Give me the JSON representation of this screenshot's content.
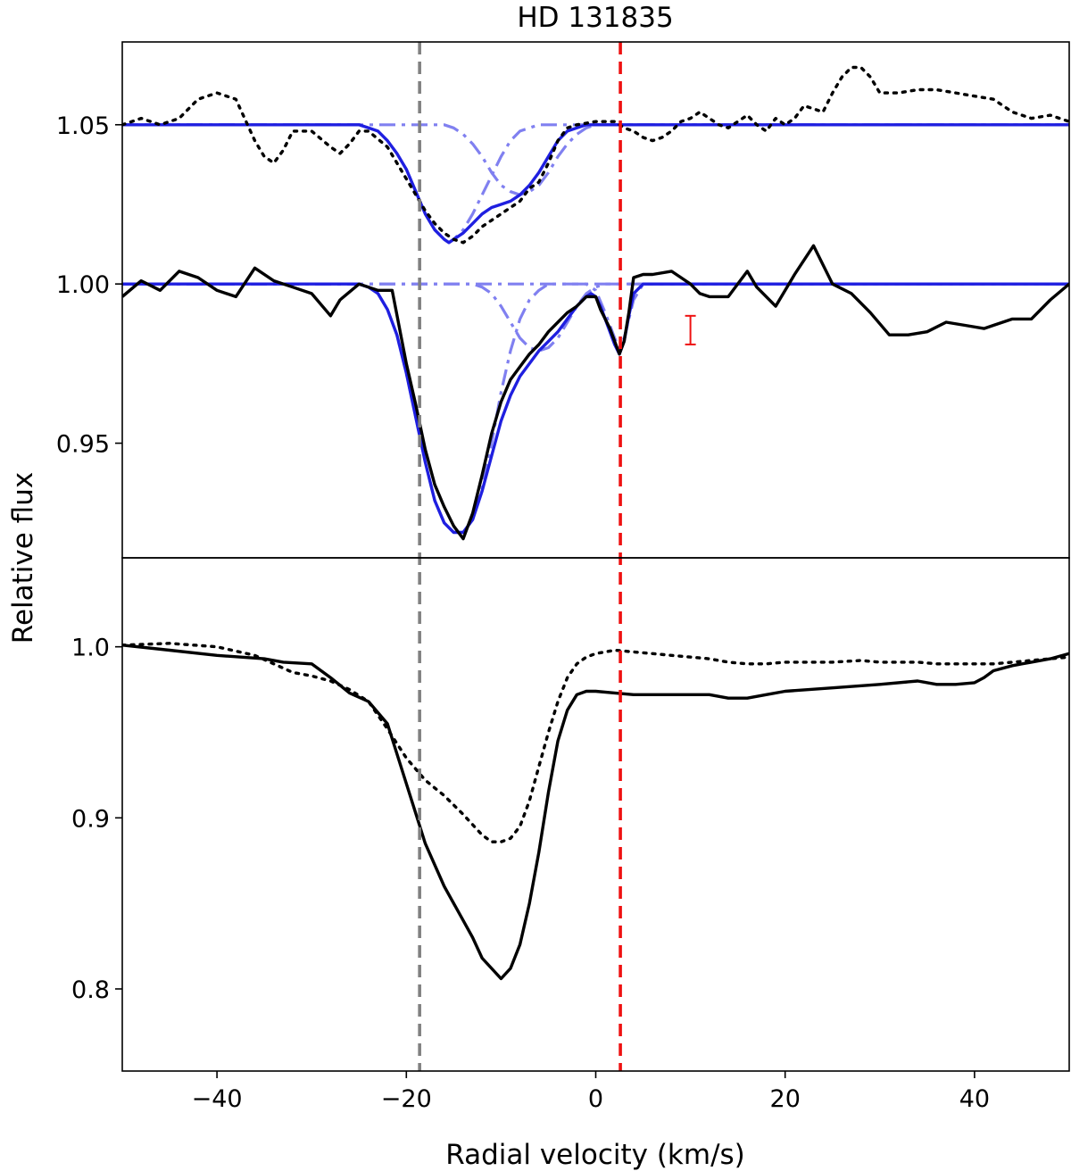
{
  "chart_data": {
    "type": "line",
    "title": "HD 131835",
    "xlabel": "Radial velocity (km/s)",
    "ylabel": "Relative flux",
    "xlim": [
      -50,
      50
    ],
    "x_ticks": [
      -40,
      -20,
      0,
      20,
      40
    ],
    "x_tick_labels": [
      "−40",
      "−20",
      "0",
      "20",
      "40"
    ],
    "grid": false,
    "legend": "none",
    "colors": {
      "observed": "#000000",
      "fit": "#1f1fe0",
      "component": "#8080f0",
      "gray_marker": "#808080",
      "red_marker": "#ee1111"
    },
    "vertical_lines": [
      {
        "x": -18.6,
        "color": "#808080",
        "style": "dashed"
      },
      {
        "x": 2.6,
        "color": "#ee1111",
        "style": "dashed"
      }
    ],
    "panels": [
      {
        "ylim": [
          0.914,
          1.076
        ],
        "y_ticks": [
          0.95,
          1.0,
          1.05
        ],
        "y_tick_labels": [
          "0.95",
          "1.00",
          "1.05"
        ],
        "error_bar": {
          "x": 10,
          "y_low": 0.981,
          "y_high": 0.99,
          "color": "#ee1111"
        },
        "series": [
          {
            "style": "solid",
            "color": "#000000",
            "x": [
              -50,
              -48,
              -46,
              -44,
              -42,
              -40,
              -38,
              -36,
              -34,
              -32,
              -30,
              -28,
              -27,
              -25,
              -23,
              -21.5,
              -20,
              -19,
              -18,
              -17,
              -16,
              -15,
              -14,
              -13,
              -12,
              -11,
              -10,
              -9,
              -8,
              -7,
              -6,
              -5,
              -4,
              -3,
              -2,
              -1,
              0,
              0.5,
              1,
              1.5,
              2,
              2.5,
              3,
              3.5,
              4,
              5,
              6,
              8,
              9,
              10,
              11,
              12,
              14,
              16,
              17,
              19,
              21,
              23,
              25,
              27,
              29,
              31,
              33,
              35,
              37,
              39,
              41,
              42,
              44,
              46,
              48,
              50
            ],
            "y": [
              0.996,
              1.001,
              0.998,
              1.004,
              1.002,
              0.998,
              0.996,
              1.005,
              1.001,
              0.999,
              0.997,
              0.99,
              0.995,
              1.0,
              0.998,
              0.998,
              0.975,
              0.962,
              0.948,
              0.937,
              0.93,
              0.924,
              0.92,
              0.928,
              0.94,
              0.953,
              0.963,
              0.97,
              0.974,
              0.978,
              0.981,
              0.985,
              0.988,
              0.991,
              0.993,
              0.996,
              0.996,
              0.992,
              0.989,
              0.986,
              0.982,
              0.978,
              0.982,
              0.991,
              1.002,
              1.003,
              1.003,
              1.004,
              1.002,
              1.0,
              0.997,
              0.996,
              0.996,
              1.004,
              0.999,
              0.993,
              1.003,
              1.012,
              1.0,
              0.997,
              0.991,
              0.984,
              0.984,
              0.985,
              0.988,
              0.987,
              0.986,
              0.987,
              0.989,
              0.989,
              0.995,
              1.0
            ]
          },
          {
            "style": "dotted",
            "color": "#000000",
            "x": [
              -50,
              -48,
              -46,
              -44,
              -42,
              -40,
              -38,
              -36,
              -35,
              -34,
              -33,
              -32,
              -30,
              -28,
              -27,
              -26,
              -25,
              -24,
              -22,
              -20,
              -19,
              -18,
              -17,
              -16,
              -15,
              -14,
              -13,
              -12,
              -11,
              -10,
              -9,
              -8,
              -7,
              -6,
              -5,
              -4,
              -3,
              -2,
              0,
              2,
              3,
              4,
              5,
              6,
              7,
              8,
              9,
              10,
              11,
              12,
              13,
              14,
              15,
              16,
              17,
              18,
              19,
              20,
              21,
              22,
              24,
              25,
              26,
              27,
              28,
              29,
              30,
              32,
              34,
              36,
              38,
              40,
              42,
              44,
              46,
              48,
              50
            ],
            "y": [
              1.05,
              1.052,
              1.05,
              1.052,
              1.058,
              1.06,
              1.058,
              1.045,
              1.04,
              1.038,
              1.042,
              1.048,
              1.048,
              1.043,
              1.041,
              1.044,
              1.048,
              1.048,
              1.043,
              1.033,
              1.028,
              1.023,
              1.019,
              1.016,
              1.014,
              1.013,
              1.015,
              1.018,
              1.02,
              1.022,
              1.024,
              1.026,
              1.03,
              1.032,
              1.038,
              1.045,
              1.049,
              1.05,
              1.051,
              1.051,
              1.049,
              1.048,
              1.046,
              1.045,
              1.046,
              1.048,
              1.051,
              1.052,
              1.054,
              1.052,
              1.05,
              1.049,
              1.051,
              1.053,
              1.05,
              1.048,
              1.052,
              1.05,
              1.052,
              1.056,
              1.054,
              1.06,
              1.065,
              1.068,
              1.068,
              1.065,
              1.06,
              1.06,
              1.061,
              1.061,
              1.06,
              1.059,
              1.058,
              1.054,
              1.052,
              1.053,
              1.051
            ]
          },
          {
            "style": "solid",
            "color": "#1f1fe0",
            "x": [
              -50,
              -25,
              -24,
              -23,
              -22,
              -21,
              -20,
              -19,
              -18,
              -17,
              -16,
              -15.5,
              -15,
              -14,
              -13,
              -12,
              -11,
              -10,
              -9,
              -8,
              -7,
              -6,
              -5,
              -4,
              -3,
              -2,
              -1,
              0,
              2,
              50
            ],
            "y": [
              1.05,
              1.05,
              1.049,
              1.048,
              1.045,
              1.041,
              1.036,
              1.029,
              1.022,
              1.017,
              1.014,
              1.013,
              1.014,
              1.016,
              1.019,
              1.022,
              1.024,
              1.025,
              1.026,
              1.028,
              1.031,
              1.035,
              1.04,
              1.045,
              1.048,
              1.049,
              1.05,
              1.05,
              1.05,
              1.05
            ]
          },
          {
            "style": "dashdot",
            "color": "#8080f0",
            "x": [
              -50,
              -25,
              -24,
              -23,
              -22,
              -21,
              -20,
              -19,
              -18,
              -17,
              -16,
              -15.5,
              -15,
              -14,
              -13,
              -12,
              -11,
              -10,
              -9,
              -8,
              -7,
              -6,
              -5,
              -4,
              -3,
              -2,
              0,
              2,
              50
            ],
            "y": [
              1.05,
              1.05,
              1.049,
              1.048,
              1.045,
              1.041,
              1.036,
              1.029,
              1.022,
              1.017,
              1.014,
              1.013,
              1.014,
              1.017,
              1.022,
              1.028,
              1.034,
              1.04,
              1.045,
              1.048,
              1.049,
              1.05,
              1.05,
              1.05,
              1.05,
              1.05,
              1.05,
              1.05,
              1.05
            ]
          },
          {
            "style": "dashdot",
            "color": "#8080f0",
            "x": [
              -50,
              -16,
              -15,
              -14,
              -13,
              -12,
              -11,
              -10,
              -9,
              -8,
              -7,
              -6,
              -5,
              -4,
              -3,
              -2,
              -1,
              0,
              50
            ],
            "y": [
              1.05,
              1.05,
              1.049,
              1.047,
              1.044,
              1.04,
              1.035,
              1.031,
              1.029,
              1.028,
              1.029,
              1.031,
              1.035,
              1.04,
              1.044,
              1.047,
              1.049,
              1.05,
              1.05
            ]
          },
          {
            "style": "solid",
            "color": "#1f1fe0",
            "x": [
              -50,
              -25,
              -24,
              -23,
              -22,
              -21,
              -20,
              -19,
              -18,
              -17,
              -16,
              -15,
              -14,
              -13,
              -12,
              -11,
              -10,
              -9,
              -8,
              -7,
              -6,
              -5,
              -4,
              -3,
              -2,
              -1,
              -0.5,
              0,
              0.5,
              1,
              1.5,
              2,
              2.5,
              3,
              3.5,
              4,
              5,
              50
            ],
            "y": [
              1.0,
              1.0,
              0.999,
              0.997,
              0.992,
              0.984,
              0.972,
              0.958,
              0.944,
              0.932,
              0.925,
              0.922,
              0.922,
              0.926,
              0.935,
              0.946,
              0.957,
              0.965,
              0.971,
              0.975,
              0.979,
              0.982,
              0.985,
              0.989,
              0.993,
              0.996,
              0.997,
              0.996,
              0.993,
              0.989,
              0.985,
              0.981,
              0.978,
              0.982,
              0.99,
              0.997,
              1.0,
              1.0
            ]
          },
          {
            "style": "dashdot",
            "color": "#8080f0",
            "x": [
              -50,
              -25,
              -24,
              -23,
              -22,
              -21,
              -20,
              -19,
              -18,
              -17,
              -16,
              -15,
              -14,
              -13,
              -12,
              -11,
              -10,
              -9,
              -8,
              -7,
              -6,
              -5,
              50
            ],
            "y": [
              1.0,
              1.0,
              0.999,
              0.997,
              0.992,
              0.984,
              0.972,
              0.958,
              0.944,
              0.932,
              0.925,
              0.922,
              0.922,
              0.926,
              0.936,
              0.95,
              0.966,
              0.979,
              0.989,
              0.995,
              0.998,
              1.0,
              1.0
            ]
          },
          {
            "style": "dashdot",
            "color": "#8080f0",
            "x": [
              -50,
              -13,
              -12,
              -11,
              -10,
              -9,
              -8,
              -7,
              -6,
              -5,
              -4,
              -3,
              -2,
              -1,
              0,
              1,
              50
            ],
            "y": [
              1.0,
              1.0,
              0.999,
              0.997,
              0.993,
              0.988,
              0.983,
              0.98,
              0.979,
              0.98,
              0.983,
              0.988,
              0.993,
              0.997,
              0.999,
              1.0,
              1.0
            ]
          },
          {
            "style": "dashdot",
            "color": "#8080f0",
            "x": [
              -50,
              -1,
              0,
              1,
              2,
              2.5,
              3,
              4,
              5,
              50
            ],
            "y": [
              1.0,
              1.0,
              0.998,
              0.991,
              0.983,
              0.98,
              0.983,
              0.995,
              1.0,
              1.0
            ]
          }
        ]
      },
      {
        "ylim": [
          0.752,
          1.052
        ],
        "y_ticks": [
          0.8,
          0.9,
          1.0
        ],
        "y_tick_labels": [
          "0.8",
          "0.9",
          "1.0"
        ],
        "series": [
          {
            "style": "solid",
            "color": "#000000",
            "x": [
              -50,
              -45,
              -40,
              -35,
              -33,
              -30,
              -28,
              -26,
              -24,
              -22,
              -20,
              -18,
              -16,
              -14,
              -13,
              -12,
              -11,
              -10,
              -9,
              -8,
              -7,
              -6,
              -5,
              -4,
              -3,
              -2,
              -1,
              0,
              2,
              4,
              6,
              10,
              12,
              14,
              16,
              18,
              20,
              25,
              30,
              34,
              36,
              38,
              40,
              41,
              42,
              44,
              46,
              48,
              50
            ],
            "y": [
              1.001,
              0.998,
              0.995,
              0.993,
              0.991,
              0.99,
              0.982,
              0.973,
              0.968,
              0.955,
              0.92,
              0.885,
              0.86,
              0.84,
              0.83,
              0.818,
              0.812,
              0.806,
              0.812,
              0.826,
              0.85,
              0.88,
              0.915,
              0.945,
              0.963,
              0.972,
              0.974,
              0.974,
              0.973,
              0.972,
              0.972,
              0.972,
              0.972,
              0.97,
              0.97,
              0.972,
              0.974,
              0.976,
              0.978,
              0.98,
              0.978,
              0.978,
              0.979,
              0.982,
              0.986,
              0.989,
              0.991,
              0.993,
              0.996
            ]
          },
          {
            "style": "dotted",
            "color": "#000000",
            "x": [
              -50,
              -45,
              -40,
              -36,
              -34,
              -32,
              -30,
              -28,
              -26,
              -24,
              -22,
              -20,
              -18,
              -16,
              -14,
              -13,
              -12,
              -11,
              -10,
              -9,
              -8,
              -7,
              -6,
              -5,
              -4,
              -3,
              -2,
              -1,
              0,
              1,
              2,
              4,
              6,
              8,
              10,
              12,
              14,
              16,
              18,
              20,
              22,
              25,
              28,
              30,
              32,
              34,
              36,
              38,
              40,
              42,
              44,
              46,
              48,
              50
            ],
            "y": [
              1.001,
              1.002,
              1.0,
              0.995,
              0.99,
              0.985,
              0.983,
              0.98,
              0.975,
              0.968,
              0.952,
              0.935,
              0.922,
              0.913,
              0.902,
              0.896,
              0.89,
              0.886,
              0.886,
              0.888,
              0.895,
              0.91,
              0.93,
              0.95,
              0.968,
              0.982,
              0.99,
              0.994,
              0.996,
              0.997,
              0.998,
              0.997,
              0.996,
              0.995,
              0.994,
              0.993,
              0.991,
              0.99,
              0.99,
              0.991,
              0.991,
              0.991,
              0.992,
              0.991,
              0.991,
              0.991,
              0.99,
              0.99,
              0.99,
              0.99,
              0.991,
              0.992,
              0.993,
              0.994
            ]
          }
        ]
      }
    ]
  }
}
